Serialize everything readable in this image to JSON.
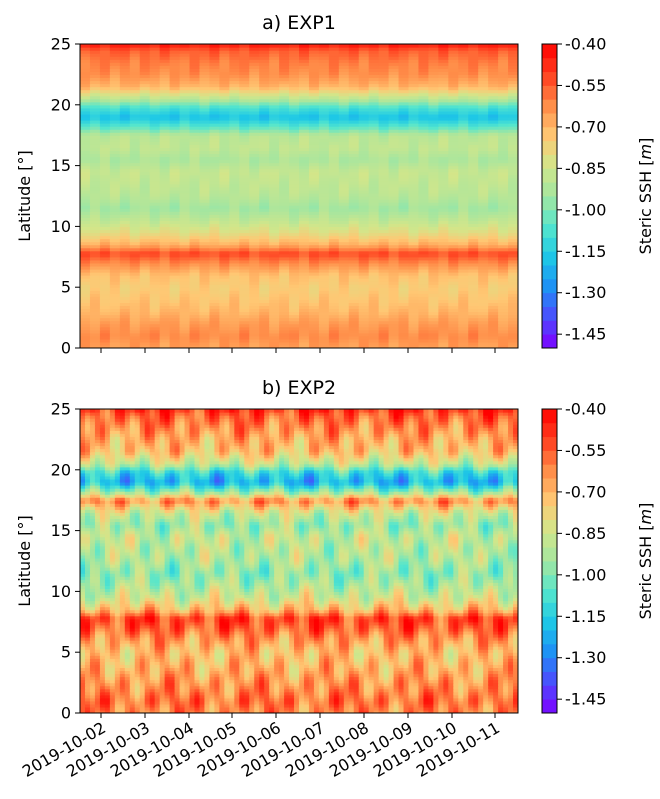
{
  "colormap": [
    "#7f00ff",
    "#4c4cfd",
    "#1e90f5",
    "#1ec8e6",
    "#55e6cd",
    "#a4e6a0",
    "#d2e68a",
    "#ffc773",
    "#ff8c48",
    "#ff4020",
    "#ff0000"
  ],
  "chart_data": [
    {
      "type": "heatmap",
      "title": "a) EXP1",
      "ylabel": "Latitude [°]",
      "xlabel": "",
      "ylim": [
        0,
        25
      ],
      "yticks": [
        "0",
        "5",
        "10",
        "15",
        "20",
        "25"
      ],
      "xticks": [
        "2019-10-02",
        "2019-10-03",
        "2019-10-04",
        "2019-10-05",
        "2019-10-06",
        "2019-10-07",
        "2019-10-08",
        "2019-10-09",
        "2019-10-10",
        "2019-10-11"
      ],
      "x_tick_labels_shown": false,
      "colorbar": {
        "label": "Steric SSH [m]",
        "label_text": "Steric SSH [",
        "label_unit": "m",
        "label_close": "]",
        "range": [
          -1.5,
          -0.4
        ],
        "ticks": [
          "-0.40",
          "-0.55",
          "-0.70",
          "-0.85",
          "-1.00",
          "-1.15",
          "-1.30",
          "-1.45"
        ]
      },
      "latitude_profile": {
        "lat": [
          0,
          1,
          2,
          3,
          4,
          5,
          6,
          7,
          7.8,
          8.5,
          9.5,
          10.5,
          11.5,
          12.5,
          13.5,
          14.5,
          15.5,
          16.5,
          17.5,
          18.2,
          19,
          19.8,
          20.5,
          21.5,
          22.5,
          23.5,
          24.5,
          25
        ],
        "ssh": [
          -0.66,
          -0.62,
          -0.65,
          -0.7,
          -0.73,
          -0.75,
          -0.72,
          -0.62,
          -0.52,
          -0.68,
          -0.8,
          -0.88,
          -0.95,
          -0.9,
          -0.88,
          -0.87,
          -0.93,
          -0.88,
          -0.9,
          -1.05,
          -1.18,
          -1.08,
          -0.9,
          -0.7,
          -0.63,
          -0.6,
          -0.55,
          -0.44
        ]
      },
      "temporal_variability": "weak"
    },
    {
      "type": "heatmap",
      "title": "b) EXP2",
      "ylabel": "Latitude [°]",
      "xlabel": "",
      "ylim": [
        0,
        25
      ],
      "yticks": [
        "0",
        "5",
        "10",
        "15",
        "20",
        "25"
      ],
      "xticks": [
        "2019-10-02",
        "2019-10-03",
        "2019-10-04",
        "2019-10-05",
        "2019-10-06",
        "2019-10-07",
        "2019-10-08",
        "2019-10-09",
        "2019-10-10",
        "2019-10-11"
      ],
      "x_tick_labels_shown": true,
      "colorbar": {
        "label": "Steric SSH [m]",
        "label_text": "Steric SSH [",
        "label_unit": "m",
        "label_close": "]",
        "range": [
          -1.5,
          -0.4
        ],
        "ticks": [
          "-0.40",
          "-0.55",
          "-0.70",
          "-0.85",
          "-1.00",
          "-1.15",
          "-1.30",
          "-1.45"
        ]
      },
      "latitude_profile": {
        "lat": [
          0,
          1,
          2,
          3,
          4,
          5,
          6,
          7,
          7.8,
          8.5,
          9.5,
          10.5,
          11.5,
          12.5,
          13.5,
          14.5,
          15.5,
          16.5,
          17.5,
          18.2,
          19,
          19.8,
          20.5,
          21.5,
          22.5,
          23.5,
          24.5,
          25
        ],
        "ssh": [
          -0.62,
          -0.58,
          -0.62,
          -0.66,
          -0.7,
          -0.72,
          -0.65,
          -0.55,
          -0.5,
          -0.7,
          -0.85,
          -0.92,
          -0.98,
          -0.92,
          -0.9,
          -0.88,
          -0.96,
          -0.85,
          -0.62,
          -0.95,
          -1.22,
          -1.12,
          -0.88,
          -0.72,
          -0.68,
          -0.62,
          -0.55,
          -0.48
        ]
      },
      "temporal_variability": "strong"
    }
  ]
}
